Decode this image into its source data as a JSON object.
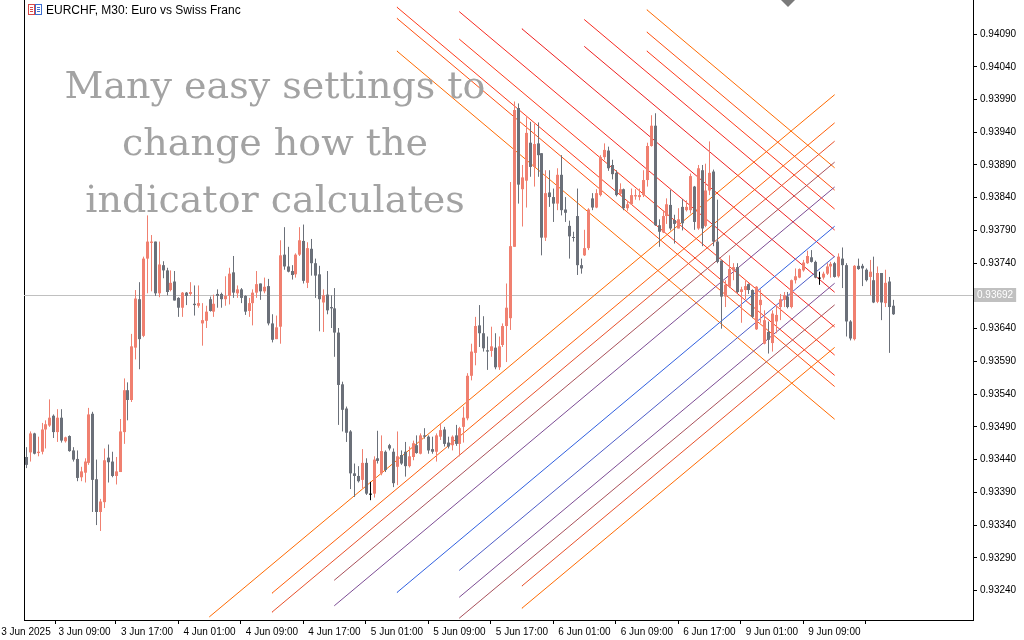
{
  "chart_data": {
    "type": "candlestick",
    "title": "EURCHF, M30: Euro vs Swiss Franc",
    "annotations": [
      "Many easy settings to change how the indicator calculates"
    ],
    "categories": [
      "3 Jun 2025",
      null,
      null,
      null,
      null,
      null,
      null,
      null,
      null,
      null,
      null,
      null,
      null,
      null,
      null,
      "3 Jun 09:00",
      null,
      null,
      null,
      null,
      null,
      null,
      null,
      null,
      null,
      null,
      null,
      null,
      null,
      null,
      null,
      "3 Jun 17:00",
      null,
      null,
      null,
      null,
      null,
      null,
      null,
      null,
      null,
      null,
      null,
      null,
      null,
      null,
      null,
      "4 Jun 01:00",
      null,
      null,
      null,
      null,
      null,
      null,
      null,
      null,
      null,
      null,
      null,
      null,
      null,
      null,
      null,
      "4 Jun 09:00",
      null,
      null,
      null,
      null,
      null,
      null,
      null,
      null,
      null,
      null,
      null,
      null,
      null,
      null,
      null,
      "4 Jun 17:00",
      null,
      null,
      null,
      null,
      null,
      null,
      null,
      null,
      null,
      null,
      null,
      null,
      null,
      null,
      null,
      "5 Jun 01:00",
      null,
      null,
      null,
      null,
      null,
      null,
      null,
      null,
      null,
      null,
      null,
      null,
      null,
      null,
      null,
      "5 Jun 09:00",
      null,
      null,
      null,
      null,
      null,
      null,
      null,
      null,
      null,
      null,
      null,
      null,
      null,
      null,
      null,
      "5 Jun 17:00",
      null,
      null,
      null,
      null,
      null,
      null,
      null,
      null,
      null,
      null,
      null,
      null,
      null,
      null,
      null,
      "6 Jun 01:00",
      null,
      null,
      null,
      null,
      null,
      null,
      null,
      null,
      null,
      null,
      null,
      null,
      null,
      null,
      null,
      "6 Jun 09:00",
      null,
      null,
      null,
      null,
      null,
      null,
      null,
      null,
      null,
      null,
      null,
      null,
      null,
      null,
      null,
      "6 Jun 17:00",
      null,
      null,
      null,
      null,
      null,
      null,
      null,
      null,
      null,
      null,
      null,
      null,
      null,
      null,
      null,
      "9 Jun 01:00",
      null,
      null,
      null,
      null,
      null,
      null,
      null,
      null,
      null,
      null,
      null,
      null,
      null,
      null,
      null,
      "9 Jun 09:00",
      null,
      null,
      null,
      null,
      null,
      null,
      null,
      null,
      null,
      null,
      null,
      null,
      null,
      null,
      null,
      null,
      null,
      null,
      null,
      null,
      null,
      null,
      null,
      null,
      null,
      null,
      null,
      null,
      null,
      null,
      null,
      null,
      null,
      null,
      null
    ],
    "ylim": [
      0.93195,
      0.94142
    ],
    "yticks": [
      {
        "value": 0.9324,
        "label": "0.93240"
      },
      {
        "value": 0.9329,
        "label": "0.93290"
      },
      {
        "value": 0.9334,
        "label": "0.93340"
      },
      {
        "value": 0.9339,
        "label": "0.93390"
      },
      {
        "value": 0.9344,
        "label": "0.93440"
      },
      {
        "value": 0.9349,
        "label": "0.93490"
      },
      {
        "value": 0.9354,
        "label": "0.93540"
      },
      {
        "value": 0.9359,
        "label": "0.93590"
      },
      {
        "value": 0.9364,
        "label": "0.93640"
      },
      {
        "value": 0.9374,
        "label": "0.93740"
      },
      {
        "value": 0.9379,
        "label": "0.93790"
      },
      {
        "value": 0.9384,
        "label": "0.93840"
      },
      {
        "value": 0.9389,
        "label": "0.93890"
      },
      {
        "value": 0.9394,
        "label": "0.93940"
      },
      {
        "value": 0.9399,
        "label": "0.93990"
      },
      {
        "value": 0.9404,
        "label": "0.94040"
      },
      {
        "value": 0.9409,
        "label": "0.94090"
      }
    ],
    "ref_lines": [
      {
        "axis": "y",
        "value": 0.93692,
        "label": "0.93692",
        "color": "#c0c0c0"
      }
    ],
    "ohlc": [
      [
        0.93444,
        0.93459,
        0.93427,
        0.93432
      ],
      [
        0.93451,
        0.93483,
        0.93437,
        0.9348
      ],
      [
        0.9348,
        0.93481,
        0.93448,
        0.93449
      ],
      [
        0.9345,
        0.93475,
        0.93445,
        0.93452
      ],
      [
        0.93452,
        0.93496,
        0.93448,
        0.93486
      ],
      [
        0.93486,
        0.935,
        0.93457,
        0.93494
      ],
      [
        0.93492,
        0.93532,
        0.9349,
        0.93504
      ],
      [
        0.93507,
        0.93509,
        0.93473,
        0.93482
      ],
      [
        0.93482,
        0.93517,
        0.93467,
        0.93504
      ],
      [
        0.93504,
        0.93517,
        0.93466,
        0.93469
      ],
      [
        0.93468,
        0.93475,
        0.93466,
        0.93474
      ],
      [
        0.93476,
        0.93477,
        0.93452,
        0.93453
      ],
      [
        0.93454,
        0.93459,
        0.93437,
        0.9344
      ],
      [
        0.93441,
        0.93454,
        0.93407,
        0.93412
      ],
      [
        0.93413,
        0.93429,
        0.93407,
        0.93422
      ],
      [
        0.9342,
        0.93442,
        0.93405,
        0.93437
      ],
      [
        0.93435,
        0.93519,
        0.93432,
        0.93509
      ],
      [
        0.9351,
        0.93513,
        0.9336,
        0.93409
      ],
      [
        0.9341,
        0.9344,
        0.9334,
        0.9336
      ],
      [
        0.9336,
        0.9338,
        0.93331,
        0.93376
      ],
      [
        0.93375,
        0.93457,
        0.93366,
        0.93439
      ],
      [
        0.93443,
        0.93463,
        0.93405,
        0.93436
      ],
      [
        0.93437,
        0.93452,
        0.93413,
        0.93415
      ],
      [
        0.93415,
        0.93444,
        0.93402,
        0.93422
      ],
      [
        0.93421,
        0.93502,
        0.93421,
        0.93483
      ],
      [
        0.93482,
        0.93564,
        0.93464,
        0.93546
      ],
      [
        0.93546,
        0.93558,
        0.935,
        0.93531
      ],
      [
        0.93531,
        0.93632,
        0.93528,
        0.93613
      ],
      [
        0.93611,
        0.93699,
        0.93593,
        0.93686
      ],
      [
        0.93685,
        0.93711,
        0.93578,
        0.93624
      ],
      [
        0.93629,
        0.9375,
        0.93627,
        0.93747
      ],
      [
        0.93747,
        0.93813,
        0.93694,
        0.93773
      ],
      [
        0.93771,
        0.93783,
        0.93697,
        0.93773
      ],
      [
        0.93773,
        0.93773,
        0.9369,
        0.93694
      ],
      [
        0.93694,
        0.93773,
        0.93688,
        0.93738
      ],
      [
        0.93737,
        0.93743,
        0.93717,
        0.93729
      ],
      [
        0.93729,
        0.93733,
        0.93691,
        0.93696
      ],
      [
        0.93699,
        0.93729,
        0.93697,
        0.9371
      ],
      [
        0.93712,
        0.93728,
        0.93683,
        0.93683
      ],
      [
        0.93687,
        0.93688,
        0.93658,
        0.93672
      ],
      [
        0.93672,
        0.93696,
        0.93658,
        0.93695
      ],
      [
        0.93695,
        0.93696,
        0.93676,
        0.9369
      ],
      [
        0.93693,
        0.93711,
        0.9369,
        0.93696
      ],
      [
        0.93678,
        0.93706,
        0.9366,
        0.93676
      ],
      [
        0.93675,
        0.93706,
        0.93672,
        0.93679
      ],
      [
        0.93648,
        0.93679,
        0.93614,
        0.93653
      ],
      [
        0.93652,
        0.93675,
        0.93641,
        0.93666
      ],
      [
        0.93685,
        0.93689,
        0.93666,
        0.93667
      ],
      [
        0.93666,
        0.93692,
        0.93658,
        0.93678
      ],
      [
        0.93693,
        0.937,
        0.93672,
        0.9369
      ],
      [
        0.93693,
        0.93695,
        0.93672,
        0.93685
      ],
      [
        0.93685,
        0.9372,
        0.93675,
        0.9369
      ],
      [
        0.9369,
        0.93733,
        0.93677,
        0.93724
      ],
      [
        0.93726,
        0.93751,
        0.93687,
        0.93695
      ],
      [
        0.93694,
        0.93706,
        0.93687,
        0.937
      ],
      [
        0.937,
        0.93702,
        0.93679,
        0.93687
      ],
      [
        0.9369,
        0.93691,
        0.93661,
        0.93666
      ],
      [
        0.93667,
        0.93687,
        0.93658,
        0.93679
      ],
      [
        0.93679,
        0.937,
        0.93645,
        0.93695
      ],
      [
        0.93695,
        0.93728,
        0.93687,
        0.93708
      ],
      [
        0.93709,
        0.93709,
        0.93684,
        0.93697
      ],
      [
        0.93697,
        0.93718,
        0.93694,
        0.93704
      ],
      [
        0.93705,
        0.93716,
        0.93645,
        0.93648
      ],
      [
        0.93648,
        0.93662,
        0.93619,
        0.93623
      ],
      [
        0.93624,
        0.9366,
        0.93624,
        0.93642
      ],
      [
        0.93643,
        0.93775,
        0.93617,
        0.93752
      ],
      [
        0.93753,
        0.93795,
        0.9373,
        0.93735
      ],
      [
        0.93735,
        0.93765,
        0.93726,
        0.93727
      ],
      [
        0.93728,
        0.93737,
        0.93715,
        0.93722
      ],
      [
        0.93723,
        0.93755,
        0.93718,
        0.93753
      ],
      [
        0.93753,
        0.93795,
        0.93751,
        0.93775
      ],
      [
        0.93774,
        0.93799,
        0.93709,
        0.93713
      ],
      [
        0.9371,
        0.93772,
        0.93702,
        0.93763
      ],
      [
        0.93762,
        0.93777,
        0.93721,
        0.9374
      ],
      [
        0.9374,
        0.93747,
        0.93687,
        0.93721
      ],
      [
        0.93723,
        0.93736,
        0.93636,
        0.93685
      ],
      [
        0.9368,
        0.937,
        0.93635,
        0.93691
      ],
      [
        0.93692,
        0.93728,
        0.93662,
        0.93668
      ],
      [
        0.93673,
        0.93691,
        0.93641,
        0.93671
      ],
      [
        0.93671,
        0.93702,
        0.93597,
        0.93634
      ],
      [
        0.93634,
        0.93641,
        0.93493,
        0.93554
      ],
      [
        0.93555,
        0.93559,
        0.93483,
        0.93516
      ],
      [
        0.93518,
        0.93521,
        0.93467,
        0.93481
      ],
      [
        0.93483,
        0.93485,
        0.93395,
        0.93419
      ],
      [
        0.93419,
        0.93434,
        0.93383,
        0.93415
      ],
      [
        0.93415,
        0.9343,
        0.93405,
        0.93407
      ],
      [
        0.93409,
        0.93456,
        0.93396,
        0.93435
      ],
      [
        0.93435,
        0.93442,
        0.93386,
        0.93388
      ],
      [
        0.93388,
        0.93406,
        0.93378,
        0.93388
      ],
      [
        0.93388,
        0.93445,
        0.93382,
        0.9344
      ],
      [
        0.93442,
        0.93484,
        0.93434,
        0.93438
      ],
      [
        0.93419,
        0.93477,
        0.93416,
        0.93453
      ],
      [
        0.93452,
        0.93454,
        0.93421,
        0.93424
      ],
      [
        0.93462,
        0.93464,
        0.93454,
        0.93457
      ],
      [
        0.93452,
        0.93457,
        0.93398,
        0.93404
      ],
      [
        0.93429,
        0.93483,
        0.93401,
        0.93445
      ],
      [
        0.93447,
        0.93454,
        0.93432,
        0.93434
      ],
      [
        0.93452,
        0.93467,
        0.93414,
        0.9343
      ],
      [
        0.9343,
        0.9346,
        0.93428,
        0.93445
      ],
      [
        0.93444,
        0.93469,
        0.93439,
        0.93465
      ],
      [
        0.93462,
        0.93477,
        0.93449,
        0.9345
      ],
      [
        0.93449,
        0.9348,
        0.93448,
        0.93477
      ],
      [
        0.93477,
        0.93488,
        0.93472,
        0.93475
      ],
      [
        0.93475,
        0.93477,
        0.93449,
        0.93454
      ],
      [
        0.93456,
        0.93475,
        0.93449,
        0.93452
      ],
      [
        0.93452,
        0.9348,
        0.93437,
        0.93477
      ],
      [
        0.93475,
        0.93495,
        0.9347,
        0.93485
      ],
      [
        0.93486,
        0.9349,
        0.9346,
        0.93464
      ],
      [
        0.93466,
        0.93475,
        0.93457,
        0.9346
      ],
      [
        0.93462,
        0.93477,
        0.93454,
        0.93475
      ],
      [
        0.93477,
        0.93493,
        0.93461,
        0.93464
      ],
      [
        0.93464,
        0.9349,
        0.93445,
        0.93488
      ],
      [
        0.9349,
        0.93521,
        0.93466,
        0.93504
      ],
      [
        0.93503,
        0.93572,
        0.935,
        0.93568
      ],
      [
        0.93568,
        0.93617,
        0.93561,
        0.93605
      ],
      [
        0.93603,
        0.93658,
        0.93584,
        0.93644
      ],
      [
        0.93645,
        0.93676,
        0.93612,
        0.93633
      ],
      [
        0.93633,
        0.93659,
        0.93605,
        0.9361
      ],
      [
        0.93607,
        0.93628,
        0.93577,
        0.93605
      ],
      [
        0.93606,
        0.93643,
        0.93597,
        0.93613
      ],
      [
        0.93611,
        0.93633,
        0.93578,
        0.93581
      ],
      [
        0.93581,
        0.93628,
        0.93577,
        0.93613
      ],
      [
        0.93615,
        0.93648,
        0.93612,
        0.93644
      ],
      [
        0.93644,
        0.93709,
        0.93589,
        0.93672
      ],
      [
        0.93656,
        0.93864,
        0.93638,
        0.93766
      ],
      [
        0.93765,
        0.93987,
        0.93765,
        0.93974
      ],
      [
        0.93977,
        0.93984,
        0.93831,
        0.9386
      ],
      [
        0.93853,
        0.9389,
        0.93796,
        0.93871
      ],
      [
        0.93866,
        0.93963,
        0.93825,
        0.93939
      ],
      [
        0.93924,
        0.93956,
        0.93872,
        0.93887
      ],
      [
        0.93887,
        0.93953,
        0.93857,
        0.93922
      ],
      [
        0.93923,
        0.93955,
        0.93872,
        0.93905
      ],
      [
        0.93908,
        0.93908,
        0.93752,
        0.93779
      ],
      [
        0.93779,
        0.93882,
        0.93774,
        0.93847
      ],
      [
        0.93848,
        0.93882,
        0.93826,
        0.93841
      ],
      [
        0.93841,
        0.93854,
        0.93803,
        0.93831
      ],
      [
        0.93831,
        0.93885,
        0.93821,
        0.93875
      ],
      [
        0.93875,
        0.93905,
        0.93813,
        0.93821
      ],
      [
        0.93822,
        0.93841,
        0.93803,
        0.93817
      ],
      [
        0.93797,
        0.93805,
        0.93747,
        0.93781
      ],
      [
        0.9378,
        0.93788,
        0.93773,
        0.93779
      ],
      [
        0.93812,
        0.93854,
        0.93722,
        0.93737
      ],
      [
        0.93737,
        0.93747,
        0.93724,
        0.93732
      ],
      [
        0.93752,
        0.93791,
        0.93751,
        0.93763
      ],
      [
        0.93763,
        0.93824,
        0.9376,
        0.93822
      ],
      [
        0.93839,
        0.93847,
        0.93821,
        0.93825
      ],
      [
        0.93825,
        0.93853,
        0.93824,
        0.93847
      ],
      [
        0.93844,
        0.93905,
        0.93842,
        0.93902
      ],
      [
        0.93902,
        0.93923,
        0.93898,
        0.93913
      ],
      [
        0.93912,
        0.93918,
        0.93881,
        0.93885
      ],
      [
        0.9389,
        0.93898,
        0.93868,
        0.93876
      ],
      [
        0.93878,
        0.93882,
        0.93842,
        0.93844
      ],
      [
        0.93846,
        0.93862,
        0.93844,
        0.93853
      ],
      [
        0.93853,
        0.93854,
        0.93821,
        0.93824
      ],
      [
        0.93824,
        0.93834,
        0.9382,
        0.9383
      ],
      [
        0.9383,
        0.93854,
        0.93829,
        0.93844
      ],
      [
        0.93842,
        0.93853,
        0.93837,
        0.93844
      ],
      [
        0.93841,
        0.93854,
        0.93836,
        0.93844
      ],
      [
        0.93844,
        0.93882,
        0.93841,
        0.93867
      ],
      [
        0.93867,
        0.93924,
        0.93857,
        0.93919
      ],
      [
        0.93919,
        0.93966,
        0.93918,
        0.9395
      ],
      [
        0.9395,
        0.93969,
        0.93797,
        0.93798
      ],
      [
        0.93798,
        0.93807,
        0.93765,
        0.93788
      ],
      [
        0.93787,
        0.93821,
        0.93786,
        0.93812
      ],
      [
        0.93812,
        0.93839,
        0.938,
        0.9383
      ],
      [
        0.93829,
        0.93852,
        0.9379,
        0.93793
      ],
      [
        0.93806,
        0.93814,
        0.9377,
        0.938
      ],
      [
        0.93793,
        0.93824,
        0.93793,
        0.93807
      ],
      [
        0.93826,
        0.93838,
        0.9379,
        0.93801
      ],
      [
        0.93821,
        0.93836,
        0.93819,
        0.93826
      ],
      [
        0.93821,
        0.93877,
        0.93816,
        0.93873
      ],
      [
        0.93857,
        0.93858,
        0.93791,
        0.93803
      ],
      [
        0.93793,
        0.9389,
        0.93791,
        0.93885
      ],
      [
        0.93882,
        0.9389,
        0.93766,
        0.93793
      ],
      [
        0.93797,
        0.93892,
        0.93795,
        0.93851
      ],
      [
        0.93851,
        0.93926,
        0.93844,
        0.93878
      ],
      [
        0.9388,
        0.93883,
        0.93766,
        0.93773
      ],
      [
        0.93773,
        0.93837,
        0.9374,
        0.93742
      ],
      [
        0.93744,
        0.93744,
        0.9364,
        0.93689
      ],
      [
        0.93689,
        0.93714,
        0.93673,
        0.93707
      ],
      [
        0.93704,
        0.93752,
        0.93702,
        0.93731
      ],
      [
        0.93729,
        0.9374,
        0.93714,
        0.93734
      ],
      [
        0.93734,
        0.9374,
        0.93694,
        0.93696
      ],
      [
        0.93696,
        0.93704,
        0.93649,
        0.937
      ],
      [
        0.93699,
        0.93713,
        0.93685,
        0.93705
      ],
      [
        0.93708,
        0.93709,
        0.93693,
        0.93699
      ],
      [
        0.93699,
        0.937,
        0.93656,
        0.93658
      ],
      [
        0.93639,
        0.93705,
        0.93638,
        0.93704
      ],
      [
        0.93676,
        0.937,
        0.93649,
        0.93684
      ],
      [
        0.93617,
        0.93668,
        0.93616,
        0.93653
      ],
      [
        0.93635,
        0.93651,
        0.93602,
        0.93623
      ],
      [
        0.93618,
        0.93668,
        0.93605,
        0.93663
      ],
      [
        0.93651,
        0.93676,
        0.93633,
        0.93661
      ],
      [
        0.93673,
        0.93693,
        0.93653,
        0.93685
      ],
      [
        0.93684,
        0.93696,
        0.93673,
        0.93691
      ],
      [
        0.93689,
        0.93696,
        0.93671,
        0.93673
      ],
      [
        0.93673,
        0.93715,
        0.93671,
        0.93714
      ],
      [
        0.93714,
        0.93732,
        0.93709,
        0.9372
      ],
      [
        0.93718,
        0.93732,
        0.93717,
        0.93731
      ],
      [
        0.93729,
        0.93745,
        0.93727,
        0.93741
      ],
      [
        0.9374,
        0.93759,
        0.93739,
        0.93751
      ],
      [
        0.93749,
        0.9376,
        0.93741,
        0.93742
      ],
      [
        0.93742,
        0.93744,
        0.93717,
        0.93718
      ],
      [
        0.93718,
        0.93727,
        0.93707,
        0.93718
      ],
      [
        0.93718,
        0.93727,
        0.93715,
        0.93724
      ],
      [
        0.93724,
        0.9374,
        0.93722,
        0.93735
      ],
      [
        0.93735,
        0.93742,
        0.93718,
        0.93739
      ],
      [
        0.9374,
        0.93742,
        0.93718,
        0.93719
      ],
      [
        0.9372,
        0.93755,
        0.93718,
        0.9375
      ],
      [
        0.93747,
        0.93764,
        0.93702,
        0.93737
      ],
      [
        0.93737,
        0.9374,
        0.93628,
        0.93651
      ],
      [
        0.93651,
        0.93653,
        0.93622,
        0.93625
      ],
      [
        0.93624,
        0.93737,
        0.93622,
        0.93736
      ],
      [
        0.93736,
        0.93747,
        0.9373,
        0.93731
      ],
      [
        0.93736,
        0.93739,
        0.93705,
        0.93732
      ],
      [
        0.9373,
        0.93732,
        0.93712,
        0.93714
      ],
      [
        0.93719,
        0.93745,
        0.93691,
        0.93727
      ],
      [
        0.93714,
        0.9375,
        0.93679,
        0.9368
      ],
      [
        0.93681,
        0.93735,
        0.93679,
        0.93725
      ],
      [
        0.93725,
        0.93725,
        0.93653,
        0.9368
      ],
      [
        0.93679,
        0.9373,
        0.93673,
        0.9371
      ],
      [
        0.93712,
        0.93719,
        0.93603,
        0.93673
      ],
      [
        0.93675,
        0.93684,
        0.93661,
        0.93662
      ],
      null,
      null,
      null,
      null,
      null,
      null,
      null,
      null,
      null,
      null,
      null,
      null,
      null,
      null,
      null,
      null,
      null,
      null,
      null,
      null
    ],
    "colors": [
      "#6b7079",
      "#f08070",
      "#6b7079",
      "#f08070",
      "#f08070",
      "#f08070",
      "#f08070",
      "#6b7079",
      "#f08070",
      "#6b7079",
      "#f08070",
      "#6b7079",
      "#6b7079",
      "#6b7079",
      "#f08070",
      "#f08070",
      "#f08070",
      "#6b7079",
      "#6b7079",
      "#f08070",
      "#f08070",
      "#6b7079",
      "#6b7079",
      "#f08070",
      "#f08070",
      "#f08070",
      "#6b7079",
      "#f08070",
      "#f08070",
      "#6b7079",
      "#f08070",
      "#f08070",
      "#f08070",
      "#6b7079",
      "#f08070",
      "#6b7079",
      "#6b7079",
      "#f08070",
      "#6b7079",
      "#6b7079",
      "#f08070",
      "#6b7079",
      "#f08070",
      "#6b7079",
      "#f08070",
      "#f08070",
      "#f08070",
      "#6b7079",
      "#f08070",
      "#6b7079",
      "#6b7079",
      "#f08070",
      "#f08070",
      "#6b7079",
      "#f08070",
      "#6b7079",
      "#6b7079",
      "#f08070",
      "#f08070",
      "#f08070",
      "#6b7079",
      "#f08070",
      "#6b7079",
      "#6b7079",
      "#f08070",
      "#f08070",
      "#6b7079",
      "#6b7079",
      "#6b7079",
      "#f08070",
      "#f08070",
      "#6b7079",
      "#f08070",
      "#6b7079",
      "#6b7079",
      "#6b7079",
      "#f08070",
      "#6b7079",
      "#6b7079",
      "#6b7079",
      "#6b7079",
      "#6b7079",
      "#6b7079",
      "#6b7079",
      "#6b7079",
      "#6b7079",
      "#f08070",
      "#6b7079",
      "#000000",
      "#f08070",
      "#6b7079",
      "#f08070",
      "#6b7079",
      "#6b7079",
      "#6b7079",
      "#f08070",
      "#6b7079",
      "#6b7079",
      "#f08070",
      "#f08070",
      "#6b7079",
      "#f08070",
      "#6b7079",
      "#6b7079",
      "#6b7079",
      "#f08070",
      "#f08070",
      "#6b7079",
      "#6b7079",
      "#f08070",
      "#6b7079",
      "#f08070",
      "#f08070",
      "#f08070",
      "#f08070",
      "#f08070",
      "#6b7079",
      "#6b7079",
      "#6b7079",
      "#f08070",
      "#6b7079",
      "#f08070",
      "#f08070",
      "#f08070",
      "#f08070",
      "#f08070",
      "#6b7079",
      "#f08070",
      "#f08070",
      "#6b7079",
      "#f08070",
      "#6b7079",
      "#6b7079",
      "#f08070",
      "#6b7079",
      "#6b7079",
      "#f08070",
      "#6b7079",
      "#6b7079",
      "#6b7079",
      "#6b7079",
      "#6b7079",
      "#6b7079",
      "#f08070",
      "#f08070",
      "#6b7079",
      "#f08070",
      "#f08070",
      "#f08070",
      "#6b7079",
      "#6b7079",
      "#6b7079",
      "#f08070",
      "#6b7079",
      "#f08070",
      "#f08070",
      "#f08070",
      "#f08070",
      "#f08070",
      "#f08070",
      "#f08070",
      "#6b7079",
      "#6b7079",
      "#f08070",
      "#f08070",
      "#6b7079",
      "#6b7079",
      "#f08070",
      "#6b7079",
      "#f08070",
      "#f08070",
      "#6b7079",
      "#f08070",
      "#6b7079",
      "#f08070",
      "#f08070",
      "#6b7079",
      "#6b7079",
      "#6b7079",
      "#f08070",
      "#f08070",
      "#f08070",
      "#6b7079",
      "#f08070",
      "#f08070",
      "#6b7079",
      "#6b7079",
      "#f08070",
      "#f08070",
      "#f08070",
      "#6b7079",
      "#f08070",
      "#f08070",
      "#f08070",
      "#f08070",
      "#6b7079",
      "#f08070",
      "#f08070",
      "#f08070",
      "#f08070",
      "#f08070",
      "#6b7079",
      "#6b7079",
      "#000000",
      "#f08070",
      "#f08070",
      "#f08070",
      "#6b7079",
      "#f08070",
      "#6b7079",
      "#6b7079",
      "#6b7079",
      "#f08070",
      "#6b7079",
      "#6b7079",
      "#6b7079",
      "#f08070",
      "#6b7079",
      "#f08070",
      "#6b7079",
      "#f08070",
      "#6b7079",
      "#6b7079",
      null,
      null,
      null,
      null,
      null,
      null,
      null,
      null,
      null,
      null,
      null,
      null,
      null,
      null,
      null,
      null,
      null,
      null,
      null,
      null
    ],
    "series": [
      {
        "type": "line",
        "color": "#ff6a00",
        "x": [
          "4 Jun 01:00",
          "9 Jun 09:00"
        ],
        "values": [
          0.932,
          0.93997
        ]
      },
      {
        "type": "line",
        "color": "#ff5f0a",
        "x": [
          "4 Jun 09:00",
          "9 Jun 09:00"
        ],
        "values": [
          0.93236,
          0.93954
        ]
      },
      {
        "type": "line",
        "color": "#e8502a",
        "x": [
          "4 Jun 09:00",
          "9 Jun 09:00"
        ],
        "values": [
          0.93207,
          0.93926
        ]
      },
      {
        "type": "line",
        "color": "#a8505a",
        "x": [
          "4 Jun 17:00",
          "9 Jun 09:00"
        ],
        "values": [
          0.93256,
          0.93894
        ]
      },
      {
        "type": "line",
        "color": "#7c4c94",
        "x": [
          "4 Jun 17:00",
          "9 Jun 09:00"
        ],
        "values": [
          0.93217,
          0.93856
        ]
      },
      {
        "type": "line",
        "color": "#3060e0",
        "x": [
          "5 Jun 01:00",
          "9 Jun 09:00"
        ],
        "values": [
          0.93237,
          0.93796
        ]
      },
      {
        "type": "line",
        "color": "#4c5cc8",
        "x": [
          "5 Jun 09:00",
          "9 Jun 09:00"
        ],
        "values": [
          0.93271,
          0.9375
        ]
      },
      {
        "type": "line",
        "color": "#7c4c94",
        "x": [
          "5 Jun 09:00",
          "9 Jun 09:00"
        ],
        "values": [
          0.9323,
          0.93709
        ]
      },
      {
        "type": "line",
        "color": "#a8505a",
        "x": [
          "5 Jun 09:00",
          "9 Jun 09:00"
        ],
        "values": [
          0.93198,
          0.93676
        ]
      },
      {
        "type": "line",
        "color": "#e8502a",
        "x": [
          "5 Jun 17:00",
          "9 Jun 09:00"
        ],
        "values": [
          0.93247,
          0.93646
        ]
      },
      {
        "type": "line",
        "color": "#ff6a00",
        "x": [
          "5 Jun 17:00",
          "9 Jun 09:00"
        ],
        "values": [
          0.93213,
          0.93611
        ]
      },
      {
        "type": "line",
        "color": "#ff6a00",
        "x": [
          "6 Jun 09:00",
          "9 Jun 09:00"
        ],
        "values": [
          0.94127,
          0.93886
        ]
      },
      {
        "type": "line",
        "color": "#ff5010",
        "x": [
          "6 Jun 09:00",
          "9 Jun 09:00"
        ],
        "values": [
          0.94093,
          0.93852
        ]
      },
      {
        "type": "line",
        "color": "#ff3a1a",
        "x": [
          "6 Jun 09:00",
          "9 Jun 09:00"
        ],
        "values": [
          0.94064,
          0.93823
        ]
      },
      {
        "type": "line",
        "color": "#f82a20",
        "x": [
          "6 Jun 01:00",
          "9 Jun 09:00"
        ],
        "values": [
          0.94112,
          0.93791
        ]
      },
      {
        "type": "line",
        "color": "#ee2020",
        "x": [
          "6 Jun 01:00",
          "9 Jun 09:00"
        ],
        "values": [
          0.94071,
          0.9375
        ]
      },
      {
        "type": "line",
        "color": "#ee2020",
        "x": [
          "5 Jun 17:00",
          "9 Jun 09:00"
        ],
        "values": [
          0.94098,
          0.93696
        ]
      },
      {
        "type": "line",
        "color": "#f82a20",
        "x": [
          "5 Jun 09:00",
          "9 Jun 09:00"
        ],
        "values": [
          0.94124,
          0.93643
        ]
      },
      {
        "type": "line",
        "color": "#ff3a1a",
        "x": [
          "5 Jun 09:00",
          "9 Jun 09:00"
        ],
        "values": [
          0.94082,
          0.936
        ]
      },
      {
        "type": "line",
        "color": "#ff3a1a",
        "x": [
          "5 Jun 01:00",
          "9 Jun 09:00"
        ],
        "values": [
          0.94131,
          0.93569
        ]
      },
      {
        "type": "line",
        "color": "#ff5010",
        "x": [
          "5 Jun 01:00",
          "9 Jun 09:00"
        ],
        "values": [
          0.94114,
          0.93552
        ]
      },
      {
        "type": "line",
        "color": "#ff6a00",
        "x": [
          "5 Jun 01:00",
          "9 Jun 09:00"
        ],
        "values": [
          0.94064,
          0.93502
        ]
      }
    ]
  }
}
